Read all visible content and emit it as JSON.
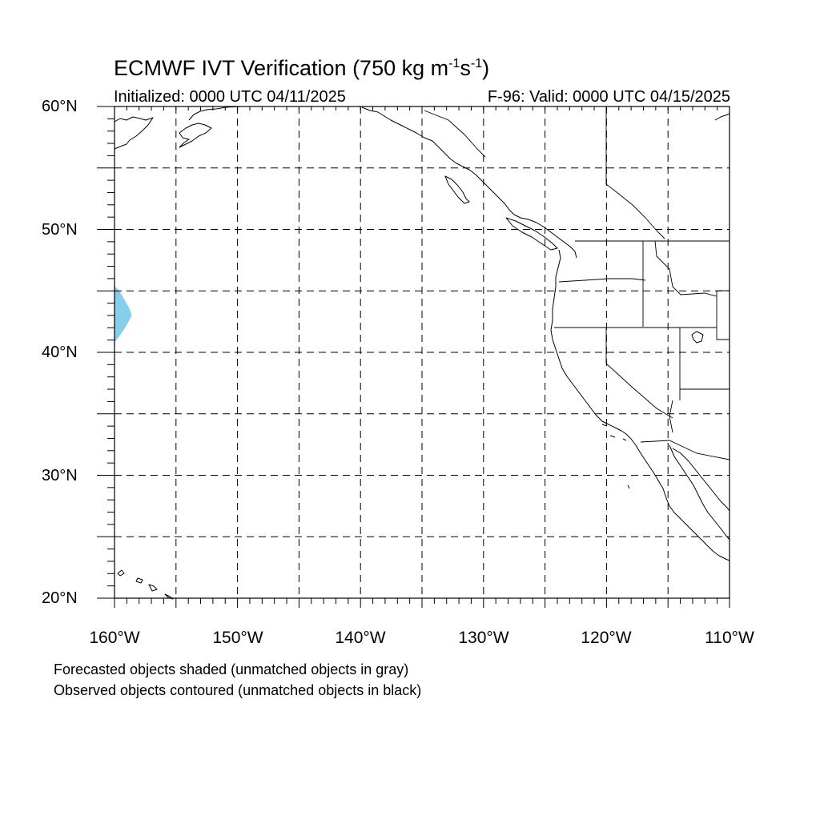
{
  "header": {
    "title_main": "ECMWF IVT Verification (750 kg m",
    "title_sup1": "-1",
    "title_mid": "s",
    "title_sup2": "-1",
    "title_end": ")",
    "initialized": "Initialized: 0000 UTC 04/11/2025",
    "valid": "F-96: Valid: 0000 UTC 04/15/2025"
  },
  "map": {
    "lat_labels": [
      "60°N",
      "50°N",
      "40°N",
      "30°N",
      "20°N"
    ],
    "lon_labels": [
      "160°W",
      "150°W",
      "140°W",
      "130°W",
      "120°W",
      "110°W"
    ],
    "lat_range": [
      20,
      60
    ],
    "lon_range": [
      -160,
      -110
    ],
    "grid_spacing_deg": 5,
    "grid_style": "dashed",
    "colors": {
      "forecast_object": "#87ceeb",
      "coastline": "#000000",
      "grid": "#000000"
    },
    "objects": [
      {
        "kind": "forecast",
        "status": "matched",
        "outline": [
          [
            -160,
            45.4
          ],
          [
            -159.6,
            45.0
          ],
          [
            -159.2,
            44.3
          ],
          [
            -158.8,
            43.6
          ],
          [
            -158.6,
            43.0
          ],
          [
            -158.9,
            42.4
          ],
          [
            -159.4,
            41.6
          ],
          [
            -160,
            40.8
          ]
        ]
      }
    ]
  },
  "footer": {
    "note1": "Forecasted objects shaded (unmatched objects in gray)",
    "note2": "Observed objects contoured (unmatched objects in black)"
  }
}
